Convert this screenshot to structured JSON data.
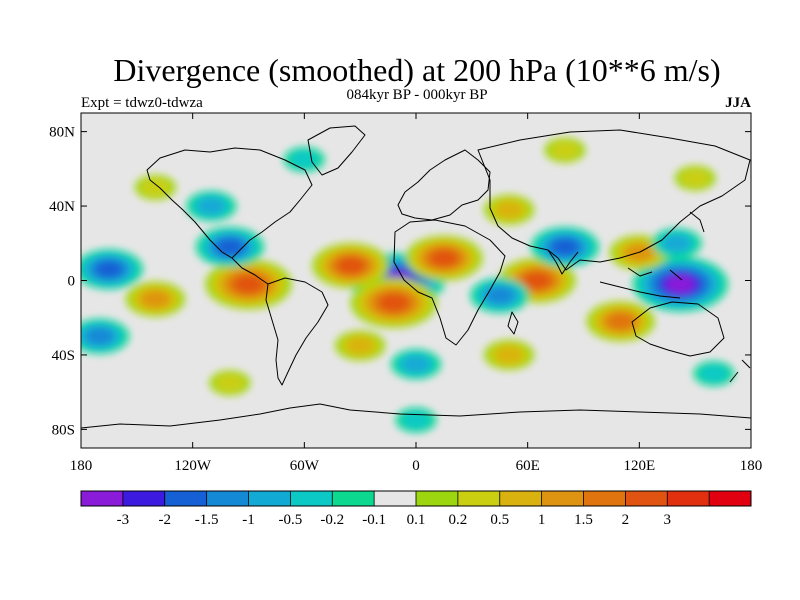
{
  "header": {
    "title": "Divergence (smoothed) at 200 hPa (10**6 m/s)",
    "subtitle": "084kyr BP - 000kyr BP",
    "experiment": "Expt = tdwz0-tdwza",
    "season": "JJA"
  },
  "map": {
    "projection": "cylindrical-equidistant",
    "lon_range": [
      -180,
      180
    ],
    "lat_range": [
      -90,
      90
    ],
    "x_ticks": [
      {
        "lon": -180,
        "label": "180"
      },
      {
        "lon": -120,
        "label": "120W"
      },
      {
        "lon": -60,
        "label": "60W"
      },
      {
        "lon": 0,
        "label": "0"
      },
      {
        "lon": 60,
        "label": "60E"
      },
      {
        "lon": 120,
        "label": "120E"
      },
      {
        "lon": 180,
        "label": "180"
      }
    ],
    "y_ticks": [
      {
        "lat": 80,
        "label": "80N"
      },
      {
        "lat": 40,
        "label": "40N"
      },
      {
        "lat": 0,
        "label": "0"
      },
      {
        "lat": -40,
        "label": "40S"
      },
      {
        "lat": -80,
        "label": "80S"
      }
    ],
    "anomalies": [
      {
        "lon": -10,
        "lat": 0,
        "value": -3.5
      },
      {
        "lon": -12,
        "lat": -12,
        "value": 3.0
      },
      {
        "lon": -35,
        "lat": 8,
        "value": 2.5
      },
      {
        "lon": 15,
        "lat": 12,
        "value": 2.5
      },
      {
        "lon": -90,
        "lat": -2,
        "value": 3.0
      },
      {
        "lon": -100,
        "lat": 18,
        "value": -2.0
      },
      {
        "lon": -165,
        "lat": 6,
        "value": -2.0
      },
      {
        "lon": -140,
        "lat": -10,
        "value": 1.5
      },
      {
        "lon": -170,
        "lat": -30,
        "value": -1.5
      },
      {
        "lon": 65,
        "lat": 0,
        "value": 2.5
      },
      {
        "lon": 45,
        "lat": -8,
        "value": -1.5
      },
      {
        "lon": 80,
        "lat": 18,
        "value": -2.0
      },
      {
        "lon": 142,
        "lat": -2,
        "value": -3.5
      },
      {
        "lon": 120,
        "lat": 15,
        "value": 1.5
      },
      {
        "lon": 140,
        "lat": 20,
        "value": -1.0
      },
      {
        "lon": 110,
        "lat": -22,
        "value": 2.0
      },
      {
        "lon": 50,
        "lat": 38,
        "value": 1.0
      },
      {
        "lon": -110,
        "lat": 40,
        "value": -1.0
      },
      {
        "lon": 0,
        "lat": -45,
        "value": -1.0
      },
      {
        "lon": 50,
        "lat": -40,
        "value": 1.0
      },
      {
        "lon": -30,
        "lat": -35,
        "value": 1.0
      },
      {
        "lon": 80,
        "lat": 70,
        "value": 0.5
      },
      {
        "lon": -60,
        "lat": 65,
        "value": -0.5
      },
      {
        "lon": 150,
        "lat": 55,
        "value": 0.5
      },
      {
        "lon": -140,
        "lat": 50,
        "value": 0.5
      },
      {
        "lon": 160,
        "lat": -50,
        "value": -0.5
      },
      {
        "lon": -100,
        "lat": -55,
        "value": 0.5
      },
      {
        "lon": 0,
        "lat": -75,
        "value": -0.5
      }
    ]
  },
  "colorbar": {
    "colors": [
      "#8a1cd9",
      "#3d1ae0",
      "#1560d4",
      "#1489d6",
      "#13a9d5",
      "#0dc9c5",
      "#0cd98f",
      "#e6e6e6",
      "#9bd60f",
      "#cbcf12",
      "#d9b20f",
      "#de9410",
      "#e07510",
      "#e15310",
      "#e0300f",
      "#e0000f"
    ],
    "labels": [
      "-3",
      "-2",
      "-1.5",
      "-1",
      "-0.5",
      "-0.2",
      "-0.1",
      "0.1",
      "0.2",
      "0.5",
      "1",
      "1.5",
      "2",
      "3"
    ],
    "levels": [
      -3.5,
      -3,
      -2,
      -1.5,
      -1,
      -0.5,
      -0.2,
      -0.1,
      0.1,
      0.2,
      0.5,
      1,
      1.5,
      2,
      3,
      3.5
    ]
  }
}
